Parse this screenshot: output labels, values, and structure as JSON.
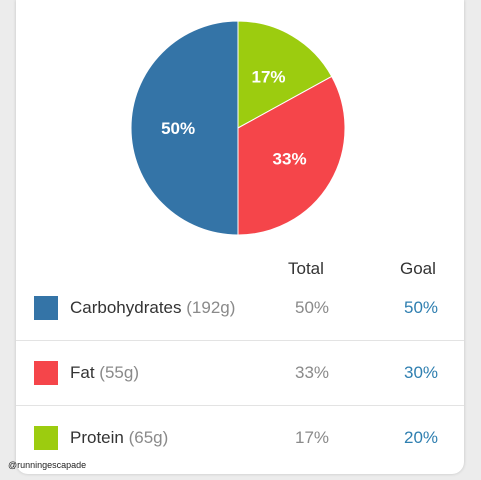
{
  "chart_data": {
    "type": "pie",
    "slices": [
      {
        "name": "Carbohydrates",
        "value": 50,
        "label": "50%",
        "color": "#3474a7"
      },
      {
        "name": "Fat",
        "value": 33,
        "label": "33%",
        "color": "#f5454a"
      },
      {
        "name": "Protein",
        "value": 17,
        "label": "17%",
        "color": "#9ccc0f"
      }
    ]
  },
  "table": {
    "headers": {
      "total": "Total",
      "goal": "Goal"
    },
    "rows": [
      {
        "name": "Carbohydrates",
        "amount": "(192g)",
        "total": "50%",
        "goal": "50%",
        "color": "#3474a7"
      },
      {
        "name": "Fat",
        "amount": "(55g)",
        "total": "33%",
        "goal": "30%",
        "color": "#f5454a"
      },
      {
        "name": "Protein",
        "amount": "(65g)",
        "total": "17%",
        "goal": "20%",
        "color": "#9ccc0f"
      }
    ]
  },
  "watermark": "@runningescapade"
}
